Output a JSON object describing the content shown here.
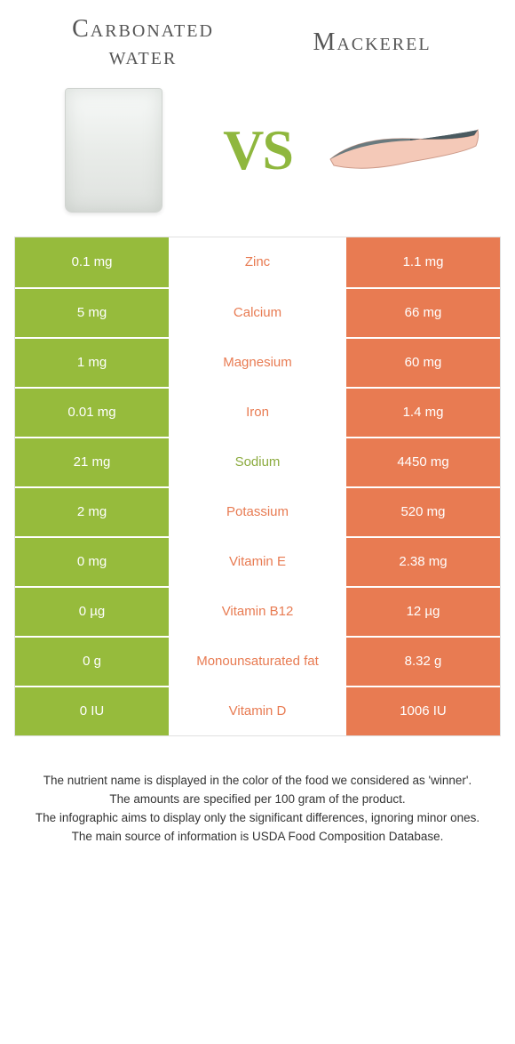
{
  "header": {
    "left_title_line1": "Carbonated",
    "left_title_line2": "water",
    "right_title": "Mackerel",
    "vs_text": "VS"
  },
  "colors": {
    "left_bg": "#96bb3c",
    "right_bg": "#e87b52",
    "label_green": "#8cab3f",
    "label_orange": "#e87b52",
    "vs_color": "#8fb73e"
  },
  "rows": [
    {
      "left": "0.1 mg",
      "label": "Zinc",
      "winner": "orange",
      "right": "1.1 mg"
    },
    {
      "left": "5 mg",
      "label": "Calcium",
      "winner": "orange",
      "right": "66 mg"
    },
    {
      "left": "1 mg",
      "label": "Magnesium",
      "winner": "orange",
      "right": "60 mg"
    },
    {
      "left": "0.01 mg",
      "label": "Iron",
      "winner": "orange",
      "right": "1.4 mg"
    },
    {
      "left": "21 mg",
      "label": "Sodium",
      "winner": "green",
      "right": "4450 mg"
    },
    {
      "left": "2 mg",
      "label": "Potassium",
      "winner": "orange",
      "right": "520 mg"
    },
    {
      "left": "0 mg",
      "label": "Vitamin E",
      "winner": "orange",
      "right": "2.38 mg"
    },
    {
      "left": "0 µg",
      "label": "Vitamin B12",
      "winner": "orange",
      "right": "12 µg"
    },
    {
      "left": "0 g",
      "label": "Monounsaturated fat",
      "winner": "orange",
      "right": "8.32 g"
    },
    {
      "left": "0 IU",
      "label": "Vitamin D",
      "winner": "orange",
      "right": "1006 IU"
    }
  ],
  "footer": {
    "line1": "The nutrient name is displayed in the color of the food we considered as 'winner'.",
    "line2": "The amounts are specified per 100 gram of the product.",
    "line3": "The infographic aims to display only the significant differences, ignoring minor ones.",
    "line4": "The main source of information is USDA Food Composition Database."
  }
}
